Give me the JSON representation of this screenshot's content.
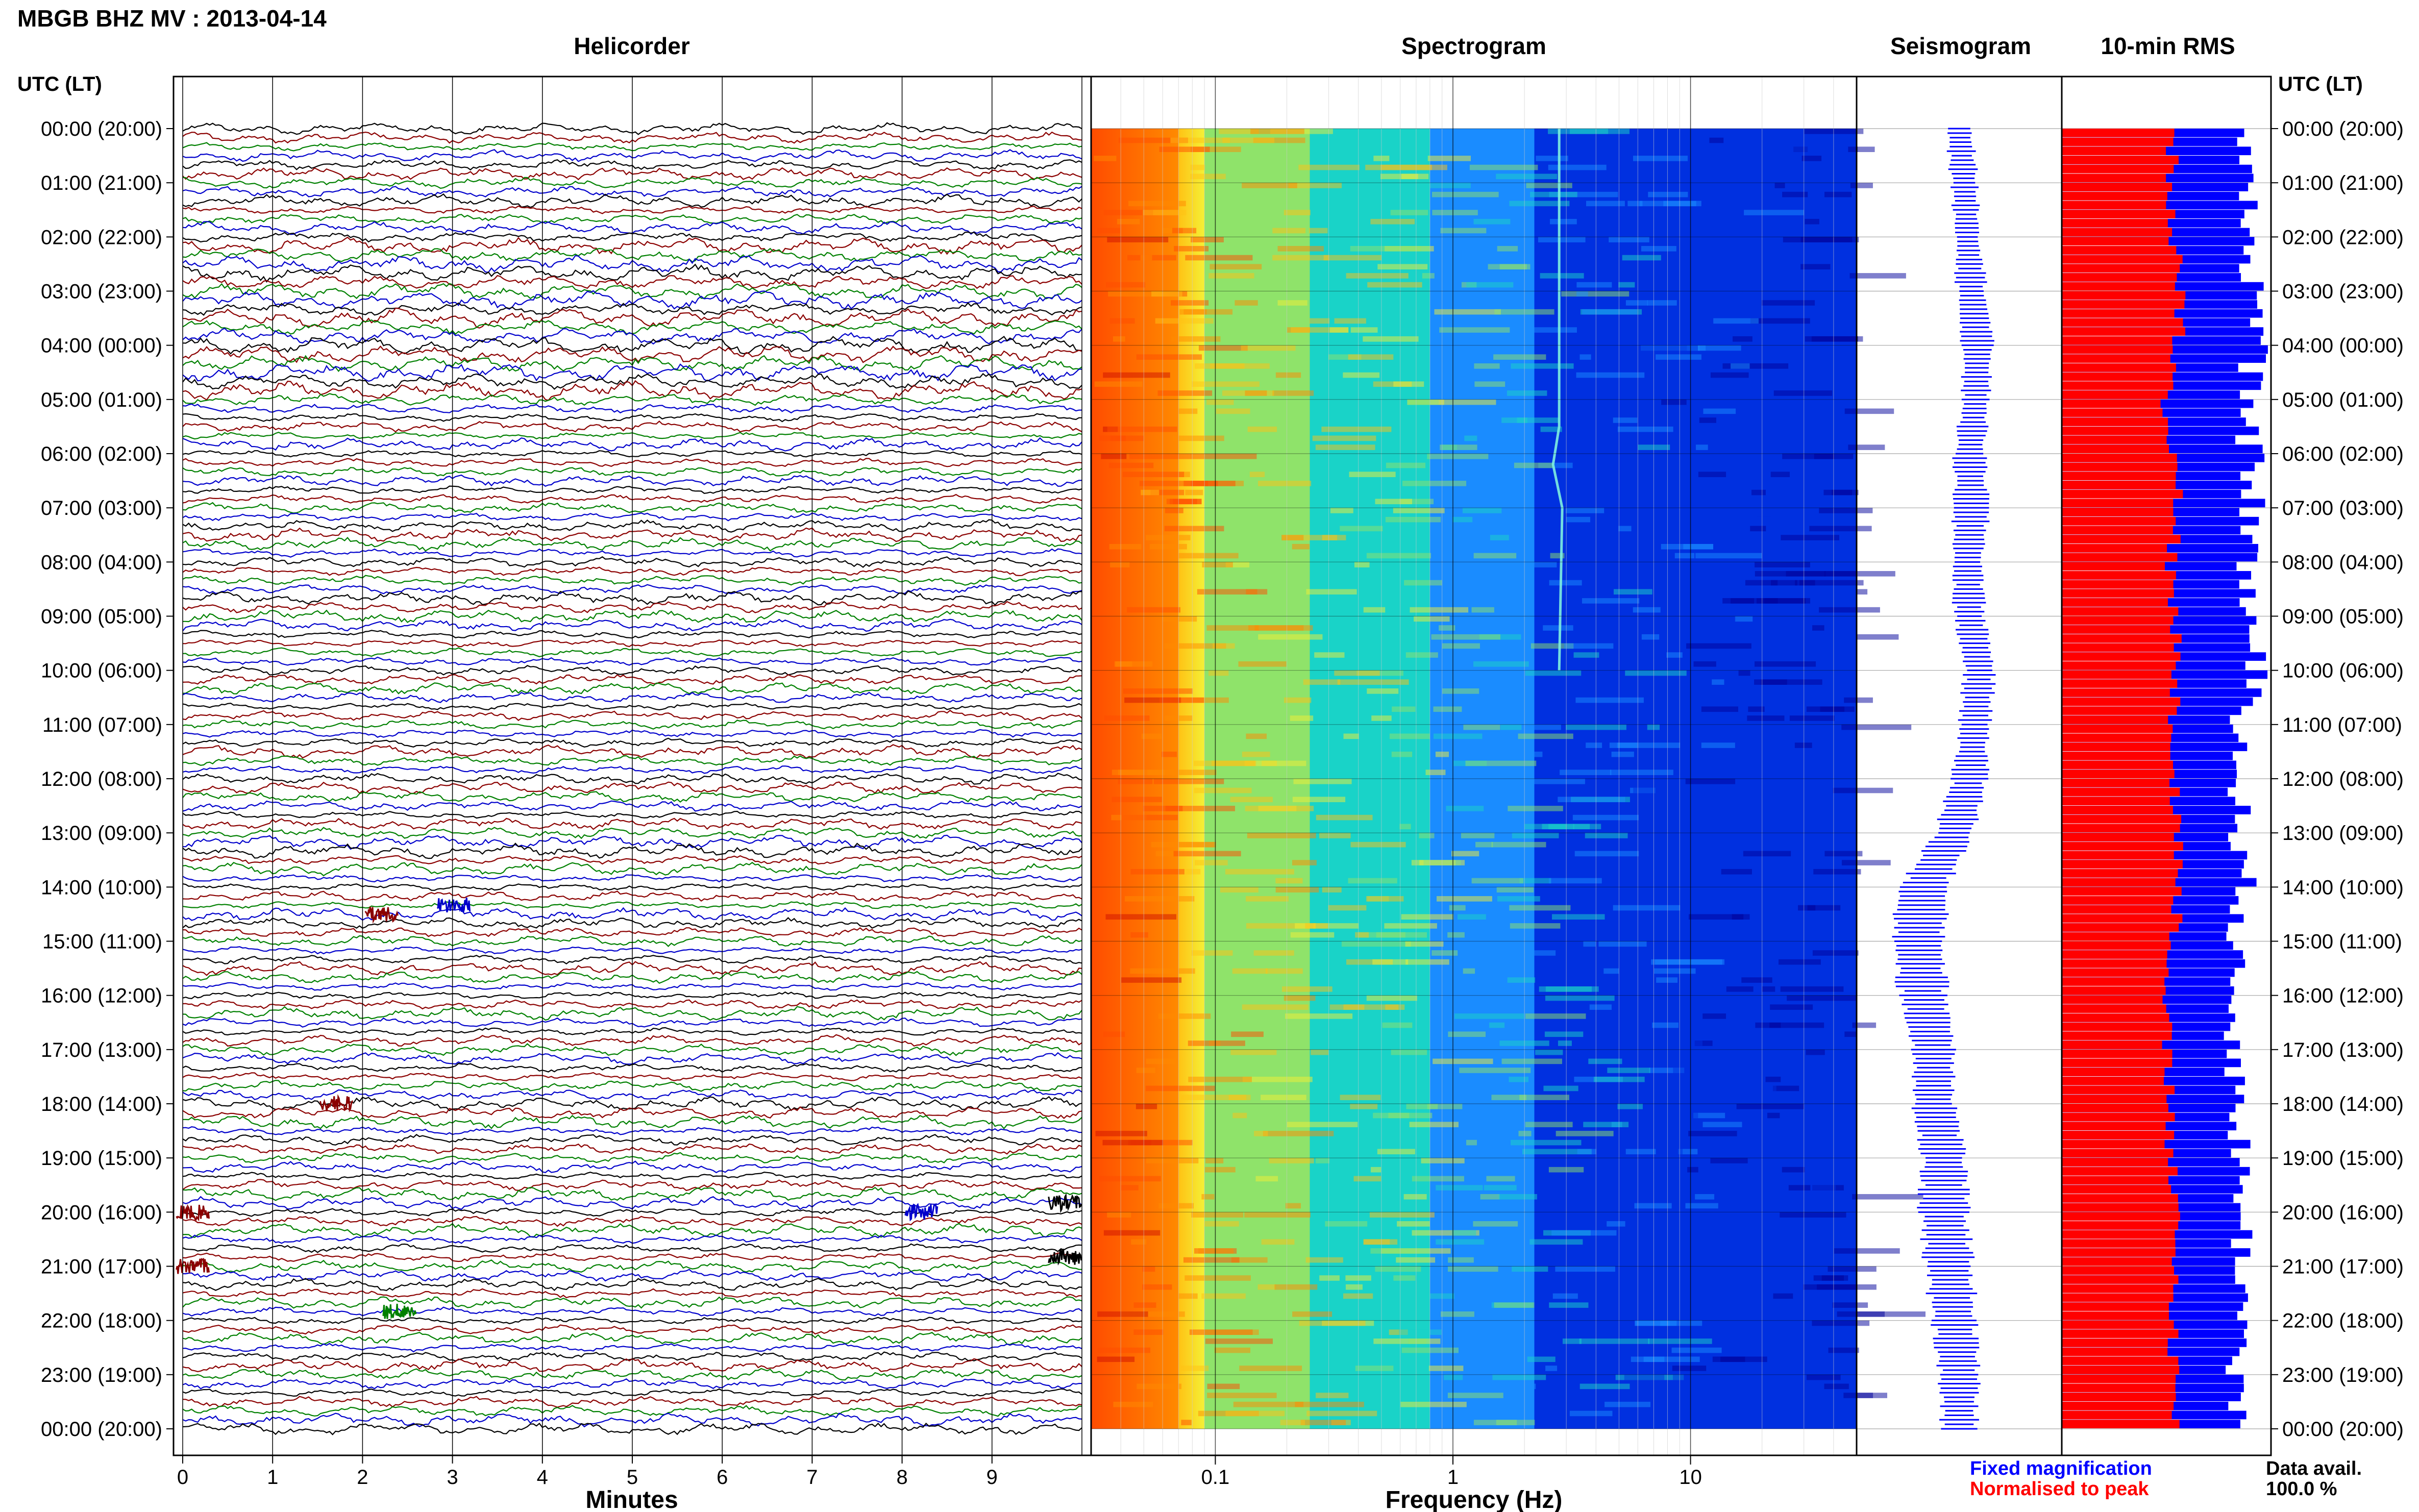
{
  "header": {
    "station_title": "MBGB BHZ MV : 2013-04-14",
    "time_label": "UTC (LT)"
  },
  "panels": {
    "helicorder": "Helicorder",
    "spectrogram": "Spectrogram",
    "seismogram": "Seismogram",
    "rms": "10-min RMS"
  },
  "time_ticks": [
    "00:00 (20:00)",
    "01:00 (21:00)",
    "02:00 (22:00)",
    "03:00 (23:00)",
    "04:00 (00:00)",
    "05:00 (01:00)",
    "06:00 (02:00)",
    "07:00 (03:00)",
    "08:00 (04:00)",
    "09:00 (05:00)",
    "10:00 (06:00)",
    "11:00 (07:00)",
    "12:00 (08:00)",
    "13:00 (09:00)",
    "14:00 (10:00)",
    "15:00 (11:00)",
    "16:00 (12:00)",
    "17:00 (13:00)",
    "18:00 (14:00)",
    "19:00 (15:00)",
    "20:00 (16:00)",
    "21:00 (17:00)",
    "22:00 (18:00)",
    "23:00 (19:00)",
    "00:00 (20:00)"
  ],
  "footer": {
    "legend_fixed": "Fixed magnification",
    "legend_normalised": "Normalised to peak",
    "data_avail_label": "Data avail.",
    "data_avail_value": "100.0 %"
  },
  "colors": {
    "helicorder_traces": [
      "#000000",
      "#8b0000",
      "#008000",
      "#0000cc"
    ],
    "fixed_magnification": "#0000ff",
    "normalised_to_peak": "#ff0000",
    "spectrogram_colormap": [
      "#00009a",
      "#0030e0",
      "#1a8cff",
      "#19d3c8",
      "#8fe36a",
      "#f4f036",
      "#ffc214",
      "#ff8a00",
      "#ff4c00",
      "#d01000"
    ]
  },
  "chart_data": [
    {
      "type": "line",
      "name": "helicorder",
      "title": "Helicorder",
      "xlabel": "Minutes",
      "x_ticks": [
        0,
        1,
        2,
        3,
        4,
        5,
        6,
        7,
        8,
        9
      ],
      "xlim": [
        0,
        10
      ],
      "rows": 144,
      "row_minutes": 10,
      "ylabel": "UTC (LT)",
      "events": [
        {
          "row": 87,
          "minute": 2.2,
          "color": "#8b0000"
        },
        {
          "row": 86,
          "minute": 3.0,
          "color": "#0000cc"
        },
        {
          "row": 108,
          "minute": 1.7,
          "color": "#8b0000"
        },
        {
          "row": 119,
          "minute": 9.8,
          "color": "#000000"
        },
        {
          "row": 125,
          "minute": 9.8,
          "color": "#000000"
        },
        {
          "row": 131,
          "minute": 2.4,
          "color": "#008000"
        },
        {
          "row": 120,
          "minute": 8.2,
          "color": "#0000cc"
        },
        {
          "row": 120,
          "minute": 0.1,
          "color": "#8b0000"
        },
        {
          "row": 126,
          "minute": 0.1,
          "color": "#8b0000"
        }
      ]
    },
    {
      "type": "heatmap",
      "name": "spectrogram",
      "title": "Spectrogram",
      "xlabel": "Frequency (Hz)",
      "x_scale": "log",
      "xlim": [
        0.03,
        50
      ],
      "x_ticks": [
        0.1,
        1,
        10
      ],
      "bands": [
        {
          "f_min": 0.03,
          "f_max": 0.07,
          "level": 0.85
        },
        {
          "f_min": 0.07,
          "f_max": 0.09,
          "level": 0.62
        },
        {
          "f_min": 0.09,
          "f_max": 0.25,
          "level": 0.48
        },
        {
          "f_min": 0.25,
          "f_max": 0.8,
          "level": 0.36
        },
        {
          "f_min": 0.8,
          "f_max": 2.2,
          "level": 0.24
        },
        {
          "f_min": 2.2,
          "f_max": 50,
          "level": 0.08
        }
      ],
      "tremor_line_hz": 2.8
    },
    {
      "type": "line",
      "name": "seismogram",
      "title": "Seismogram",
      "hourly_center_offset": [
        0.0,
        0.05,
        0.08,
        0.12,
        0.18,
        0.16,
        0.1,
        0.12,
        0.08,
        0.1,
        0.2,
        0.15,
        0.1,
        -0.05,
        -0.35,
        -0.4,
        -0.35,
        -0.25,
        -0.25,
        -0.15,
        -0.15,
        -0.1,
        -0.05,
        0.0,
        0.0
      ],
      "hourly_amplitude": [
        0.12,
        0.12,
        0.12,
        0.14,
        0.14,
        0.12,
        0.14,
        0.16,
        0.14,
        0.14,
        0.14,
        0.14,
        0.16,
        0.18,
        0.22,
        0.24,
        0.22,
        0.2,
        0.2,
        0.2,
        0.22,
        0.22,
        0.2,
        0.18,
        0.16
      ]
    },
    {
      "type": "bar",
      "name": "rms",
      "title": "10-min RMS",
      "orientation": "horizontal",
      "bins": 144,
      "hourly_fixed": [
        0.9,
        0.92,
        0.94,
        0.98,
        0.97,
        0.92,
        0.95,
        0.96,
        0.93,
        0.94,
        0.97,
        0.9,
        0.88,
        0.9,
        0.92,
        0.86,
        0.86,
        0.88,
        0.88,
        0.9,
        0.9,
        0.92,
        0.9,
        0.88,
        0.9
      ],
      "hourly_normalised": [
        0.55,
        0.55,
        0.56,
        0.6,
        0.58,
        0.52,
        0.56,
        0.58,
        0.54,
        0.56,
        0.58,
        0.56,
        0.56,
        0.58,
        0.58,
        0.56,
        0.52,
        0.52,
        0.54,
        0.54,
        0.56,
        0.56,
        0.56,
        0.56,
        0.56
      ],
      "series": [
        {
          "name": "Fixed magnification",
          "color": "#0000ff"
        },
        {
          "name": "Normalised to peak",
          "color": "#ff0000"
        }
      ]
    }
  ]
}
